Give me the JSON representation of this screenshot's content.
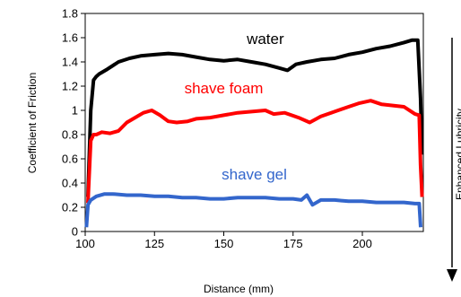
{
  "chart_data": {
    "type": "line",
    "title": "",
    "xlabel": "Distance (mm)",
    "ylabel": "Coefficient of Friction",
    "xlim": [
      100,
      222
    ],
    "ylim": [
      0,
      1.8
    ],
    "x_ticks": [
      {
        "value": 100,
        "label": "100"
      },
      {
        "value": 125,
        "label": "125"
      },
      {
        "value": 150,
        "label": "150"
      },
      {
        "value": 175,
        "label": "175"
      },
      {
        "value": 200,
        "label": "200"
      }
    ],
    "y_ticks": [
      {
        "value": 0,
        "label": "0"
      },
      {
        "value": 0.2,
        "label": "0.2"
      },
      {
        "value": 0.4,
        "label": "0.4"
      },
      {
        "value": 0.6,
        "label": "0.6"
      },
      {
        "value": 0.8,
        "label": "0.8"
      },
      {
        "value": 1.0,
        "label": "1"
      },
      {
        "value": 1.2,
        "label": "1.2"
      },
      {
        "value": 1.4,
        "label": "1.4"
      },
      {
        "value": 1.6,
        "label": "1.6"
      },
      {
        "value": 1.8,
        "label": "1.8"
      }
    ],
    "grid": false,
    "legend": "none",
    "series": [
      {
        "name": "water",
        "color": "#000000",
        "label_at": {
          "x": 165,
          "y": 1.55
        },
        "x": [
          101,
          102,
          103,
          104,
          105,
          108,
          112,
          116,
          120,
          125,
          130,
          135,
          140,
          145,
          150,
          155,
          160,
          165,
          170,
          173,
          176,
          180,
          185,
          190,
          195,
          200,
          205,
          210,
          215,
          218,
          220,
          221,
          221.5
        ],
        "y": [
          0.3,
          1.0,
          1.25,
          1.28,
          1.3,
          1.34,
          1.4,
          1.43,
          1.45,
          1.46,
          1.47,
          1.46,
          1.44,
          1.42,
          1.41,
          1.42,
          1.4,
          1.38,
          1.35,
          1.33,
          1.38,
          1.4,
          1.42,
          1.43,
          1.46,
          1.48,
          1.51,
          1.53,
          1.56,
          1.58,
          1.58,
          1.1,
          0.65
        ]
      },
      {
        "name": "shave foam",
        "color": "#ff0000",
        "label_at": {
          "x": 150,
          "y": 1.14
        },
        "x": [
          101,
          102,
          103,
          104,
          106,
          109,
          112,
          115,
          118,
          121,
          124,
          127,
          130,
          133,
          137,
          140,
          145,
          150,
          155,
          160,
          165,
          168,
          172,
          177,
          181,
          185,
          190,
          195,
          199,
          203,
          207,
          211,
          215,
          219,
          220.5,
          221,
          221.5
        ],
        "y": [
          0.25,
          0.75,
          0.8,
          0.8,
          0.82,
          0.81,
          0.83,
          0.9,
          0.94,
          0.98,
          1.0,
          0.96,
          0.91,
          0.9,
          0.91,
          0.93,
          0.94,
          0.96,
          0.98,
          0.99,
          1.0,
          0.97,
          0.98,
          0.94,
          0.9,
          0.95,
          0.99,
          1.03,
          1.06,
          1.08,
          1.05,
          1.04,
          1.03,
          0.97,
          0.96,
          0.55,
          0.3
        ]
      },
      {
        "name": "shave gel",
        "color": "#3366cc",
        "label_at": {
          "x": 161,
          "y": 0.43
        },
        "x": [
          100.5,
          101,
          102,
          104,
          107,
          110,
          115,
          120,
          125,
          130,
          135,
          140,
          145,
          150,
          155,
          160,
          165,
          170,
          175,
          178,
          180,
          182,
          185,
          190,
          195,
          200,
          205,
          210,
          215,
          219,
          220.5,
          221
        ],
        "y": [
          0.05,
          0.22,
          0.26,
          0.29,
          0.31,
          0.31,
          0.3,
          0.3,
          0.29,
          0.29,
          0.28,
          0.28,
          0.27,
          0.27,
          0.28,
          0.28,
          0.28,
          0.27,
          0.27,
          0.26,
          0.3,
          0.22,
          0.26,
          0.26,
          0.25,
          0.25,
          0.24,
          0.24,
          0.24,
          0.23,
          0.23,
          0.05
        ]
      }
    ],
    "side_note": "Enhanced Lubricity"
  }
}
